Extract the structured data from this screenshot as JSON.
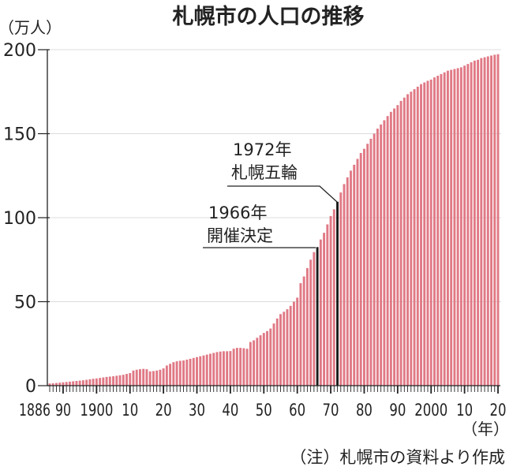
{
  "chart_data": {
    "type": "bar",
    "title": "札幌市の人口の推移",
    "ylabel": "（万人）",
    "xlabel": "（年）",
    "ylim": [
      0,
      200
    ],
    "yticks": [
      0,
      50,
      100,
      150,
      200
    ],
    "grid": true,
    "x_start": 1886,
    "x_end": 2020,
    "xtick_labels": [
      {
        "year": 1886,
        "label": "1886"
      },
      {
        "year": 1890,
        "label": "90"
      },
      {
        "year": 1900,
        "label": "1900"
      },
      {
        "year": 1910,
        "label": "10"
      },
      {
        "year": 1920,
        "label": "20"
      },
      {
        "year": 1930,
        "label": "30"
      },
      {
        "year": 1940,
        "label": "40"
      },
      {
        "year": 1950,
        "label": "50"
      },
      {
        "year": 1960,
        "label": "60"
      },
      {
        "year": 1970,
        "label": "70"
      },
      {
        "year": 1980,
        "label": "80"
      },
      {
        "year": 1990,
        "label": "90"
      },
      {
        "year": 2000,
        "label": "2000"
      },
      {
        "year": 2010,
        "label": "10"
      },
      {
        "year": 2020,
        "label": "20"
      }
    ],
    "values": [
      1.3,
      1.4,
      1.6,
      1.8,
      2.0,
      2.2,
      2.4,
      2.6,
      2.8,
      3.0,
      3.2,
      3.5,
      3.8,
      4.1,
      4.3,
      4.6,
      4.9,
      5.2,
      5.4,
      5.6,
      5.9,
      6.2,
      6.5,
      7.0,
      7.5,
      9.0,
      9.5,
      9.8,
      10.0,
      9.8,
      8.5,
      8.7,
      9.0,
      9.5,
      10.3,
      12.0,
      13.0,
      14.0,
      14.5,
      14.8,
      15.0,
      15.5,
      16.0,
      16.5,
      17.0,
      17.5,
      18.0,
      18.5,
      19.0,
      19.5,
      20.0,
      20.3,
      20.5,
      20.5,
      20.6,
      22.0,
      22.5,
      22.5,
      22.3,
      22.0,
      26.0,
      27.0,
      28.5,
      30.0,
      31.4,
      32.5,
      34.0,
      37.0,
      40.0,
      42.6,
      44.0,
      45.5,
      47.5,
      50.0,
      52.4,
      61.0,
      65.0,
      70.0,
      75.0,
      79.5,
      82.5,
      87.0,
      91.0,
      96.0,
      101.0,
      105.0,
      109.5,
      115.0,
      120.0,
      124.0,
      128.0,
      131.5,
      135.0,
      138.5,
      141.0,
      144.0,
      147.0,
      150.0,
      153.0,
      155.5,
      158.0,
      160.5,
      163.0,
      165.0,
      167.0,
      169.5,
      171.5,
      173.5,
      175.0,
      176.5,
      178.0,
      179.5,
      180.5,
      181.5,
      182.2,
      183.5,
      184.5,
      185.5,
      186.5,
      187.5,
      188.0,
      188.5,
      189.0,
      189.5,
      190.5,
      191.5,
      192.5,
      193.5,
      194.0,
      195.0,
      195.5,
      196.0,
      196.5,
      197.0,
      197.3
    ],
    "highlight_years": [
      1966,
      1972
    ],
    "annotations": [
      {
        "year": 1972,
        "line1": "1972年",
        "line2": "札幌五輪"
      },
      {
        "year": 1966,
        "line1": "1966年",
        "line2": "開催決定"
      }
    ],
    "source_note": "（注）札幌市の資料より作成",
    "colors": {
      "bar": "#e07985",
      "highlight": "#1a1a1a",
      "grid": "#dcdcdc",
      "axis": "#222222"
    }
  }
}
